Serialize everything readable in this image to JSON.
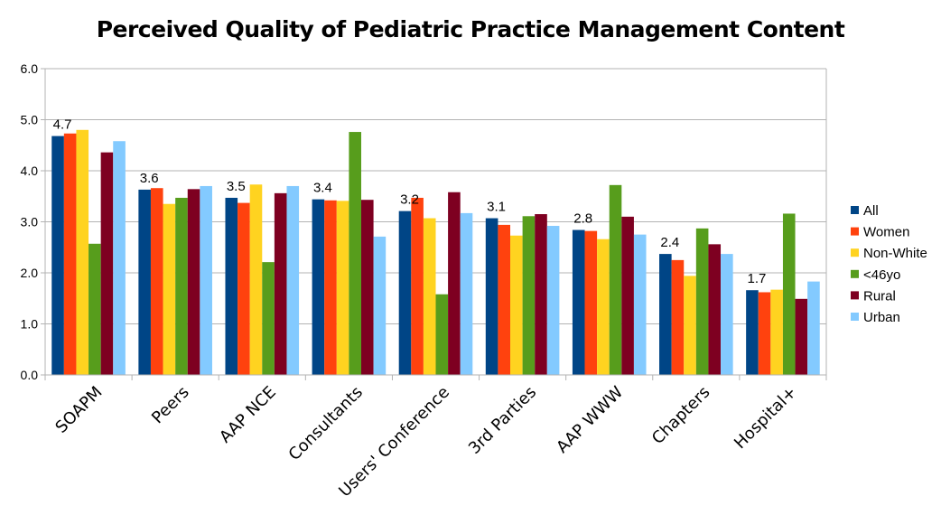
{
  "chart_data": {
    "type": "bar",
    "title": "Perceived Quality of Pediatric Practice Management Content",
    "xlabel": "",
    "ylabel": "",
    "ylim": [
      0,
      6
    ],
    "yticks": [
      "0.0",
      "1.0",
      "2.0",
      "3.0",
      "4.0",
      "5.0",
      "6.0"
    ],
    "grid": true,
    "legend_position": "right",
    "categories": [
      "SOAPM",
      "Peers",
      "AAP NCE",
      "Consultants",
      "Users' Conference",
      "3rd Parties",
      "AAP WWW",
      "Chapters",
      "Hospital+"
    ],
    "data_labels": [
      "4.7",
      "3.6",
      "3.5",
      "3.4",
      "3.2",
      "3.1",
      "2.8",
      "2.4",
      "1.7"
    ],
    "series": [
      {
        "name": "All",
        "color": "#004586",
        "values": [
          4.68,
          3.63,
          3.47,
          3.44,
          3.21,
          3.07,
          2.84,
          2.37,
          1.66
        ]
      },
      {
        "name": "Women",
        "color": "#ff420e",
        "values": [
          4.73,
          3.66,
          3.37,
          3.42,
          3.47,
          2.94,
          2.82,
          2.25,
          1.62
        ]
      },
      {
        "name": "Non-White",
        "color": "#ffd320",
        "values": [
          4.8,
          3.35,
          3.73,
          3.41,
          3.07,
          2.73,
          2.66,
          1.94,
          1.67
        ]
      },
      {
        "name": "<46yo",
        "color": "#579d1c",
        "values": [
          2.57,
          3.47,
          2.21,
          4.76,
          1.58,
          3.11,
          3.72,
          2.87,
          3.16
        ]
      },
      {
        "name": "Rural",
        "color": "#7e0021",
        "values": [
          4.36,
          3.64,
          3.56,
          3.43,
          3.58,
          3.15,
          3.1,
          2.56,
          1.49
        ]
      },
      {
        "name": "Urban",
        "color": "#83caff",
        "values": [
          4.58,
          3.7,
          3.7,
          2.71,
          3.17,
          2.92,
          2.75,
          2.37,
          1.83
        ]
      }
    ]
  }
}
